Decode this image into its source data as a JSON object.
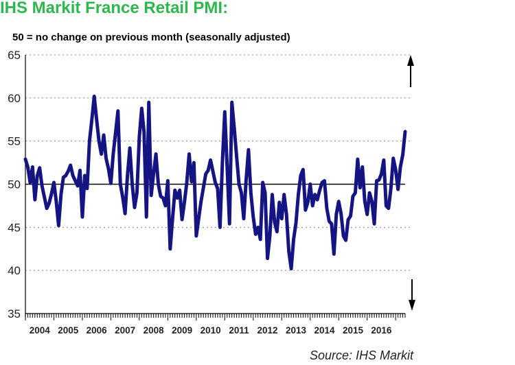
{
  "title": "IHS Markit France Retail PMI:",
  "subtitle": "50 = no change on previous month (seasonally adjusted)",
  "source": "Source: IHS Markit",
  "colors": {
    "title": "#2db84d",
    "series": "#141482",
    "grid": "#888888",
    "axis": "#000000"
  },
  "chart_data": {
    "type": "line",
    "title": "IHS Markit France Retail PMI:",
    "subtitle": "50 = no change on previous month (seasonally adjusted)",
    "xlabel": "",
    "ylabel": "",
    "ylim": [
      35,
      65
    ],
    "yticks": [
      "65",
      "60",
      "55",
      "50",
      "45",
      "40",
      "35"
    ],
    "reference_line": 50,
    "grid": "horizontal dotted",
    "annotations": [
      "arrow-up",
      "arrow-down"
    ],
    "years": [
      "2004",
      "2005",
      "2006",
      "2007",
      "2008",
      "2009",
      "2010",
      "2011",
      "2012",
      "2013",
      "2014",
      "2015",
      "2016"
    ],
    "series": [
      {
        "name": "France Retail PMI",
        "start": "2004-01",
        "values": [
          52.9,
          52.0,
          50.2,
          52.0,
          48.2,
          51.0,
          51.9,
          49.8,
          48.5,
          47.2,
          47.8,
          48.9,
          50.2,
          48.0,
          45.2,
          48.8,
          50.8,
          51.0,
          51.5,
          52.2,
          51.0,
          50.4,
          49.8,
          51.6,
          46.2,
          51.0,
          49.5,
          55.0,
          57.5,
          60.2,
          57.5,
          55.0,
          53.5,
          55.7,
          53.0,
          51.8,
          50.1,
          53.5,
          56.0,
          58.5,
          50.0,
          48.5,
          46.6,
          51.0,
          54.2,
          50.0,
          47.3,
          49.0,
          55.5,
          58.8,
          56.0,
          46.2,
          59.5,
          48.7,
          51.2,
          53.5,
          50.0,
          48.6,
          48.4,
          47.5,
          50.4,
          42.5,
          46.0,
          49.3,
          48.4,
          49.3,
          45.9,
          47.9,
          50.2,
          53.5,
          50.3,
          52.5,
          44.0,
          46.0,
          48.0,
          49.6,
          51.2,
          51.6,
          52.8,
          51.5,
          50.2,
          49.5,
          45.0,
          52.5,
          58.4,
          52.0,
          45.4,
          59.5,
          56.5,
          53.2,
          50.0,
          49.0,
          46.0,
          50.5,
          54.0,
          49.0,
          46.2,
          44.2,
          45.0,
          43.6,
          50.2,
          49.0,
          41.4,
          44.0,
          48.8,
          45.6,
          44.5,
          47.9,
          46.0,
          48.8,
          46.5,
          42.2,
          40.2,
          43.6,
          45.5,
          48.8,
          51.0,
          51.7,
          47.0,
          47.9,
          50.0,
          47.5,
          48.8,
          48.2,
          49.3,
          50.2,
          50.4,
          47.2,
          45.7,
          45.4,
          41.9,
          46.5,
          48.0,
          46.6,
          44.0,
          43.5,
          45.9,
          46.3,
          48.6,
          49.0,
          52.9,
          49.6,
          52.0,
          48.0,
          46.5,
          49.0,
          48.0,
          45.4,
          50.4,
          50.5,
          51.2,
          52.8,
          47.5,
          47.2,
          49.5,
          53.0,
          51.7,
          49.4,
          52.0,
          53.4,
          56.1
        ]
      }
    ]
  }
}
